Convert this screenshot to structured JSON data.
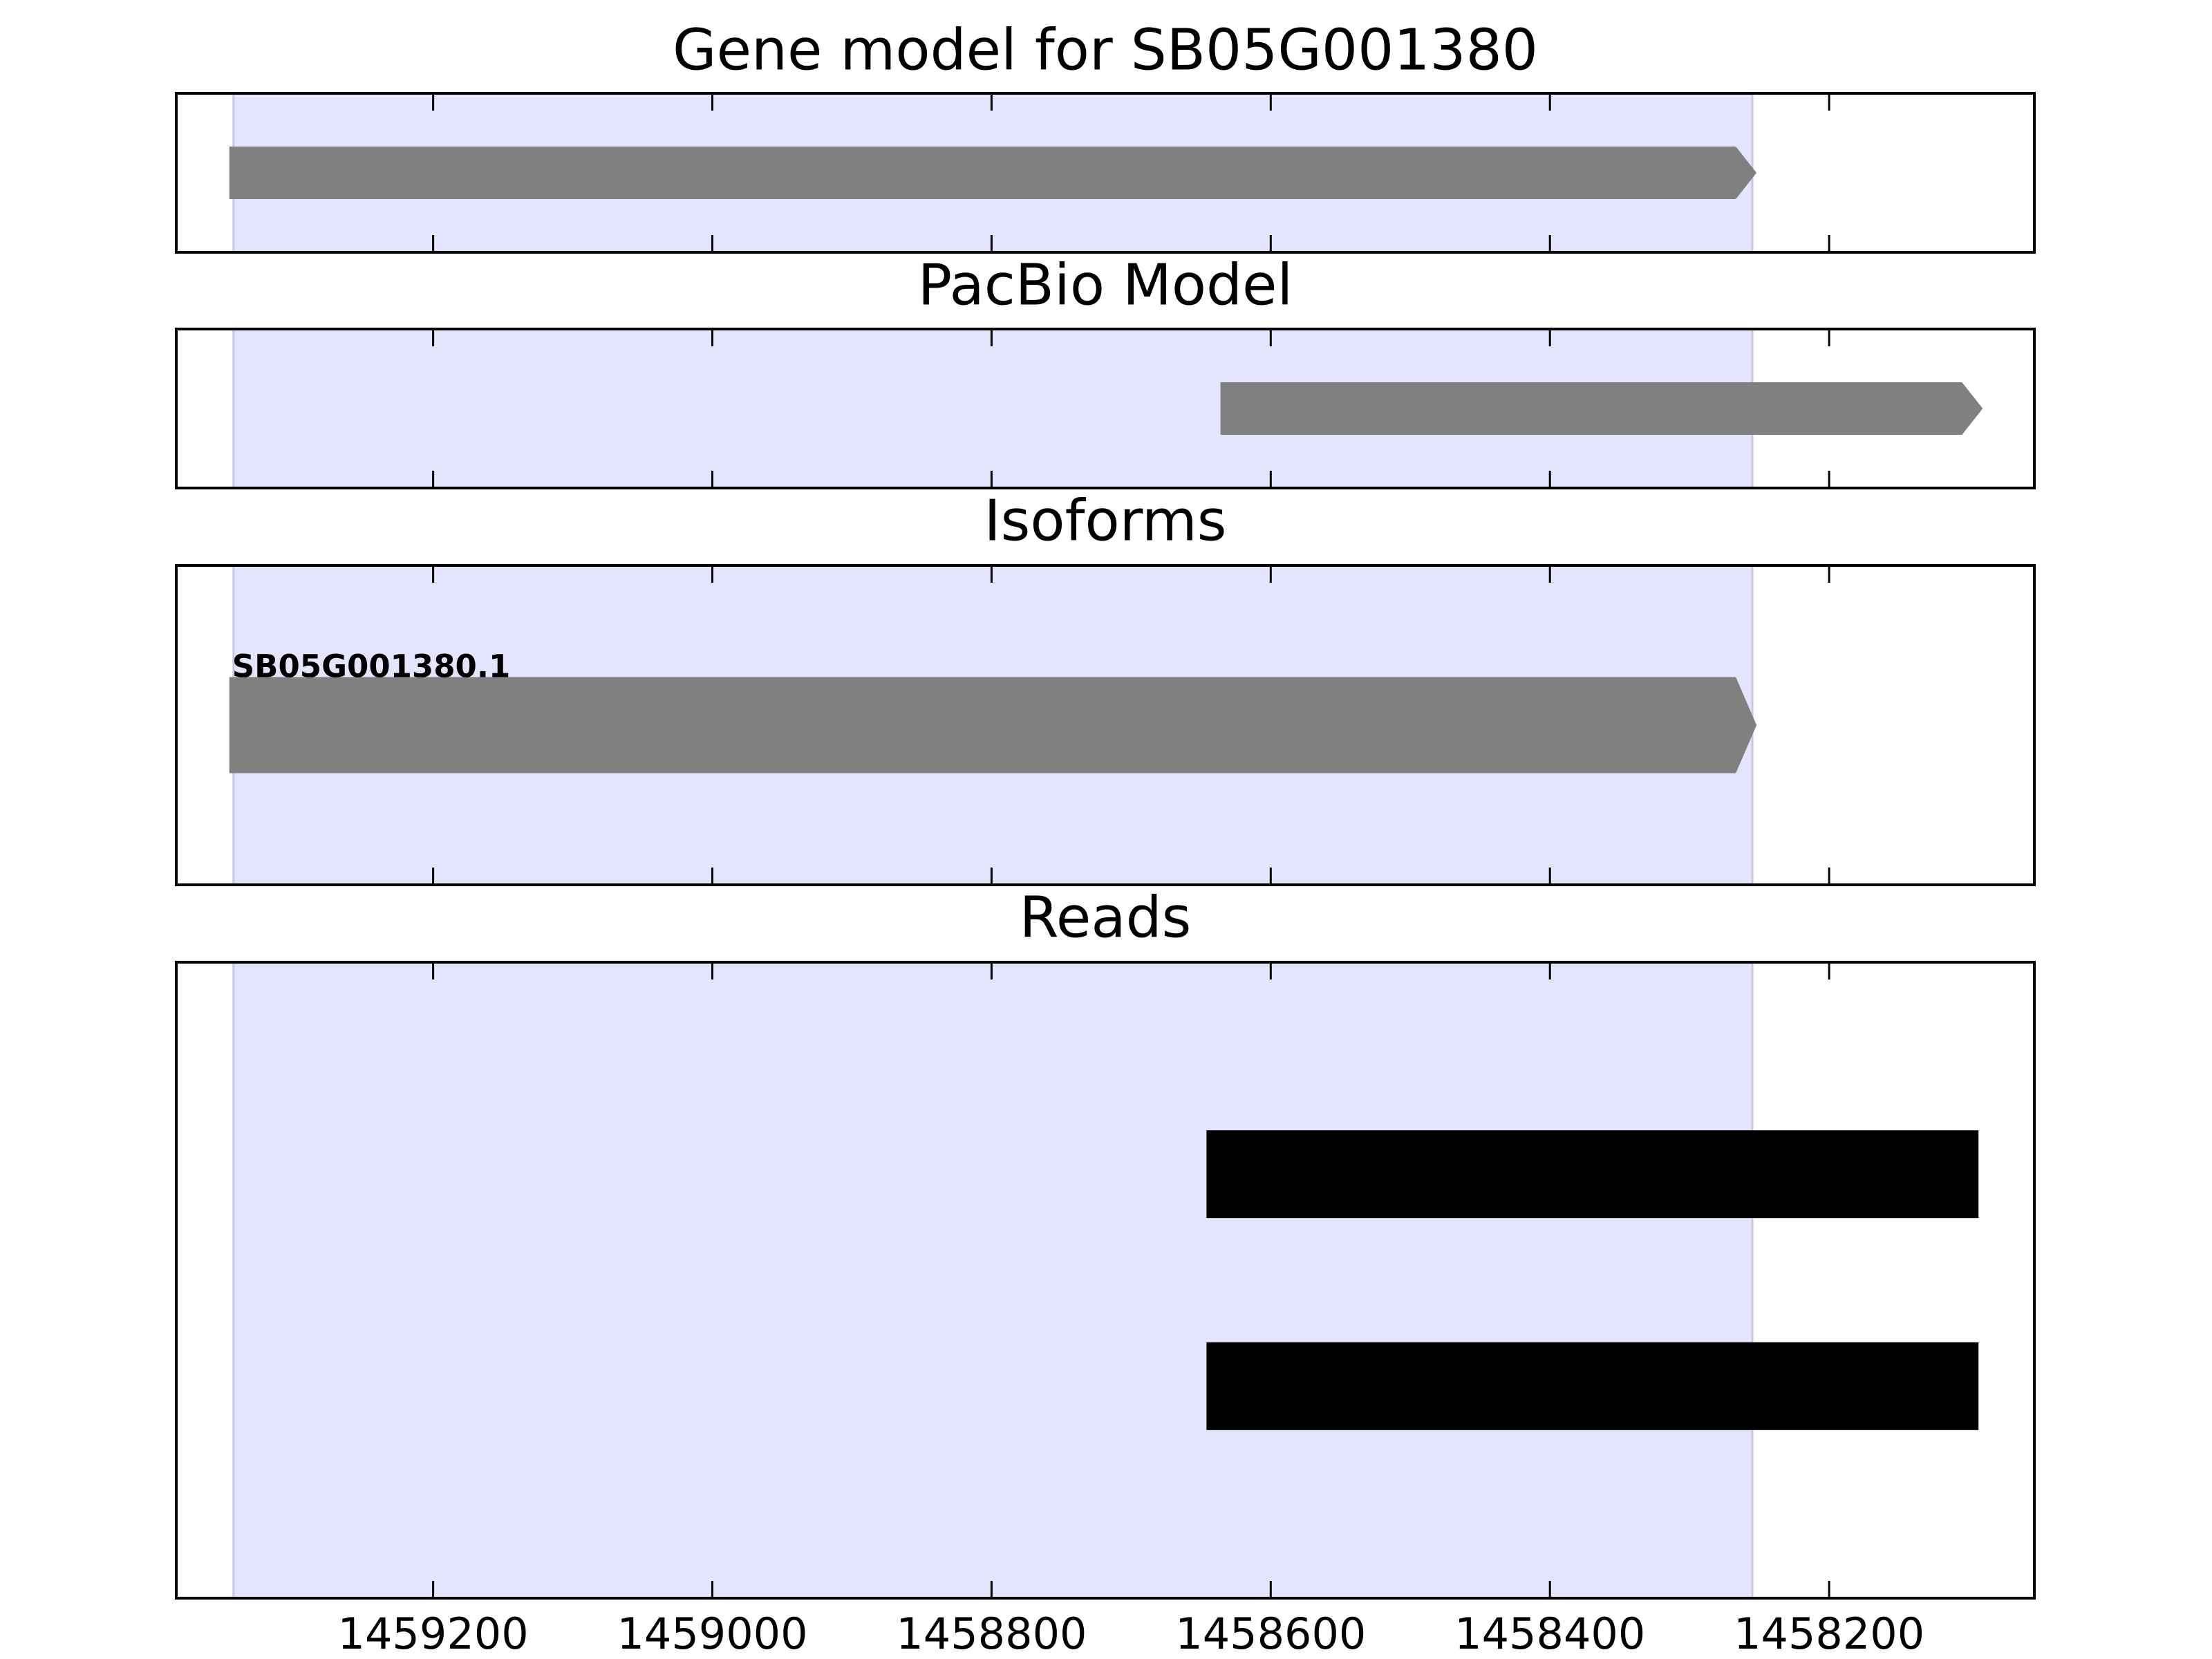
{
  "chart_data": [
    {
      "type": "gene_model",
      "title": "Gene model for SB05G001380",
      "xlim": [
        1459384,
        1458053
      ],
      "xticks": [
        1459200,
        1459000,
        1458800,
        1458600,
        1458400,
        1458200
      ],
      "highlight": [
        1459343,
        1458255
      ],
      "highlight_color": "#e4e4fd",
      "features": [
        {
          "start": 1459346,
          "end": 1458252,
          "color": "#808080"
        }
      ]
    },
    {
      "type": "gene_model",
      "title": "PacBio Model",
      "xlim": [
        1459384,
        1458053
      ],
      "xticks": [
        1459200,
        1459000,
        1458800,
        1458600,
        1458400,
        1458200
      ],
      "highlight": [
        1459343,
        1458255
      ],
      "highlight_color": "#e4e4fd",
      "features": [
        {
          "start": 1458636,
          "end": 1458090,
          "color": "#808080"
        }
      ]
    },
    {
      "type": "gene_model",
      "title": "Isoforms",
      "xlim": [
        1459384,
        1458053
      ],
      "xticks": [
        1459200,
        1459000,
        1458800,
        1458600,
        1458400,
        1458200
      ],
      "highlight": [
        1459343,
        1458255
      ],
      "highlight_color": "#e4e4fd",
      "features": [
        {
          "name": "SB05G001380.1",
          "start": 1459346,
          "end": 1458252,
          "color": "#808080"
        }
      ]
    },
    {
      "type": "reads",
      "title": "Reads",
      "xlim": [
        1459384,
        1458053
      ],
      "xticks": [
        1459200,
        1459000,
        1458800,
        1458600,
        1458400,
        1458200
      ],
      "ylim": [
        0,
        3
      ],
      "highlight": [
        1459343,
        1458255
      ],
      "highlight_color": "#e4e4fd",
      "features": [
        {
          "start": 1458646,
          "end": 1458093,
          "y": 2,
          "color": "#000000"
        },
        {
          "start": 1458646,
          "end": 1458093,
          "y": 1,
          "color": "#000000"
        }
      ]
    }
  ]
}
